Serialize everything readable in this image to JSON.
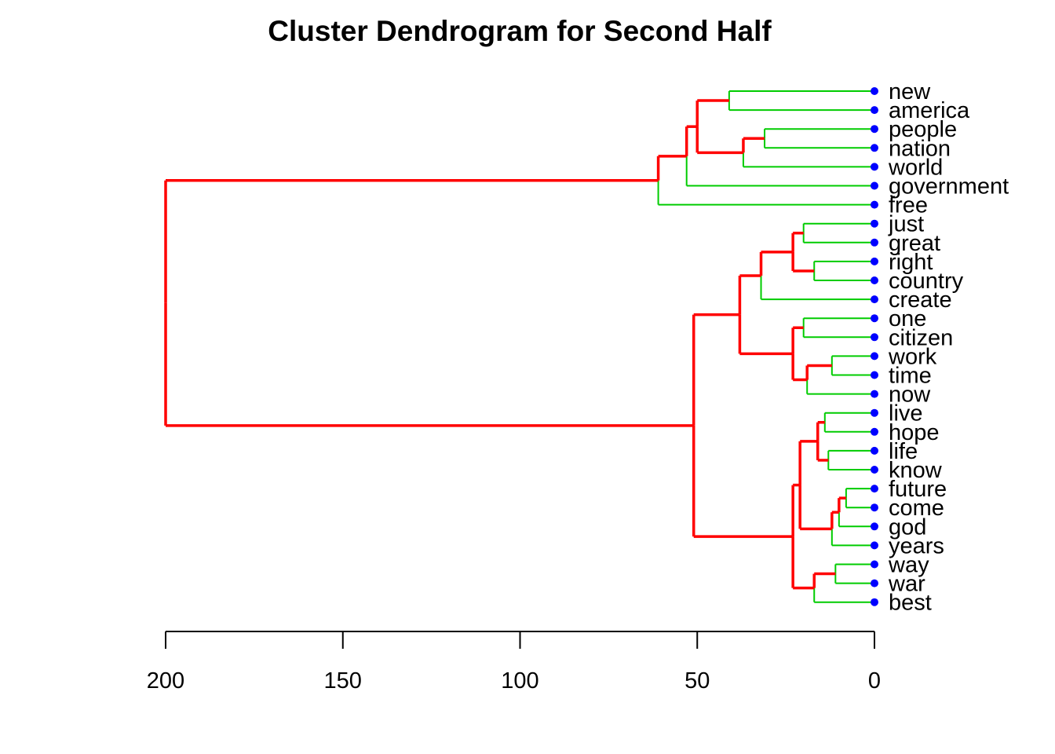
{
  "chart_data": {
    "type": "dendrogram",
    "title": "Cluster Dendrogram for Second Half",
    "orientation": "horizontal",
    "x_axis": {
      "reversed": true,
      "range": [
        0,
        200
      ],
      "ticks": [
        200,
        150,
        100,
        50,
        0
      ],
      "tick_labels": [
        "200",
        "150",
        "100",
        "50",
        "0"
      ]
    },
    "colors": {
      "internal_merge": "#ff0000",
      "leaf_merge": "#00cc00",
      "leaf_point": "#0000ff",
      "axis": "#000000",
      "text": "#000000"
    },
    "leaves": [
      "new",
      "america",
      "people",
      "nation",
      "world",
      "government",
      "free",
      "just",
      "great",
      "right",
      "country",
      "create",
      "one",
      "citizen",
      "work",
      "time",
      "now",
      "live",
      "hope",
      "life",
      "know",
      "future",
      "come",
      "god",
      "years",
      "way",
      "war",
      "best"
    ],
    "merges": [
      {
        "id": "m1",
        "left": "new",
        "right": "america",
        "height": 41
      },
      {
        "id": "m2",
        "left": "people",
        "right": "nation",
        "height": 31
      },
      {
        "id": "m3",
        "left": "m2",
        "right": "world",
        "height": 37
      },
      {
        "id": "m4",
        "left": "m1",
        "right": "m3",
        "height": 50
      },
      {
        "id": "m5",
        "left": "m4",
        "right": "government",
        "height": 53
      },
      {
        "id": "m6",
        "left": "m5",
        "right": "free",
        "height": 61
      },
      {
        "id": "m7",
        "left": "just",
        "right": "great",
        "height": 20
      },
      {
        "id": "m8",
        "left": "right",
        "right": "country",
        "height": 17
      },
      {
        "id": "m9",
        "left": "m7",
        "right": "m8",
        "height": 23
      },
      {
        "id": "m10",
        "left": "m9",
        "right": "create",
        "height": 32
      },
      {
        "id": "m11",
        "left": "one",
        "right": "citizen",
        "height": 20
      },
      {
        "id": "m12",
        "left": "work",
        "right": "time",
        "height": 12
      },
      {
        "id": "m13",
        "left": "m12",
        "right": "now",
        "height": 19
      },
      {
        "id": "m14",
        "left": "m11",
        "right": "m13",
        "height": 23
      },
      {
        "id": "m15",
        "left": "m10",
        "right": "m14",
        "height": 38
      },
      {
        "id": "m16",
        "left": "live",
        "right": "hope",
        "height": 14
      },
      {
        "id": "m17",
        "left": "life",
        "right": "know",
        "height": 13
      },
      {
        "id": "m18",
        "left": "m16",
        "right": "m17",
        "height": 16
      },
      {
        "id": "m19",
        "left": "future",
        "right": "come",
        "height": 8
      },
      {
        "id": "m20",
        "left": "m19",
        "right": "god",
        "height": 10
      },
      {
        "id": "m21",
        "left": "m20",
        "right": "years",
        "height": 12
      },
      {
        "id": "m22",
        "left": "m18",
        "right": "m21",
        "height": 21
      },
      {
        "id": "m23",
        "left": "way",
        "right": "war",
        "height": 11
      },
      {
        "id": "m24",
        "left": "m23",
        "right": "best",
        "height": 17
      },
      {
        "id": "m25",
        "left": "m22",
        "right": "m24",
        "height": 23
      },
      {
        "id": "m26",
        "left": "m15",
        "right": "m25",
        "height": 51
      },
      {
        "id": "m27",
        "left": "m6",
        "right": "m26",
        "height": 200
      }
    ]
  }
}
